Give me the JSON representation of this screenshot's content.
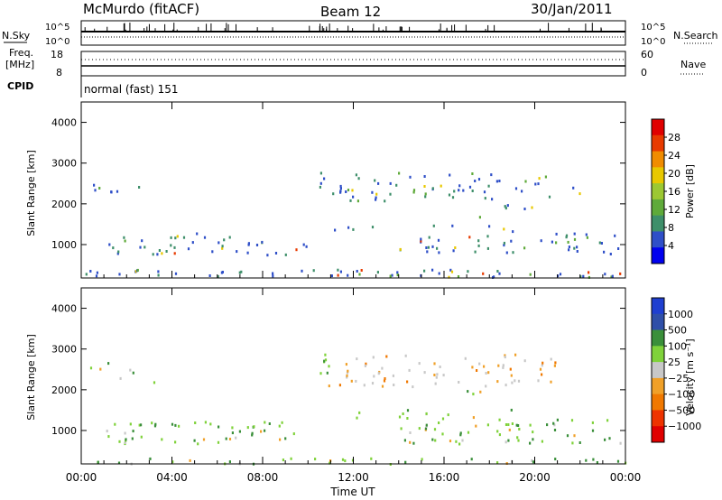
{
  "header": {
    "station": "McMurdo (fitACF)",
    "beam": "Beam 12",
    "date": "30/Jan/2011"
  },
  "top_panel": {
    "nsky_label": "N.Sky",
    "nsearch_label": "N.Search",
    "left_ticks": [
      "10^5",
      "10^0"
    ],
    "right_ticks": [
      "10^5",
      "10^0"
    ]
  },
  "freq_panel": {
    "freq_label": "Freq.",
    "freq_unit": "[MHz]",
    "nave_label": "Nave",
    "freq_ticks": [
      "18",
      "8"
    ],
    "nave_ticks": [
      "60",
      "0"
    ]
  },
  "cpid": {
    "label": "CPID",
    "value": "normal (fast) 151"
  },
  "colors": {
    "power_scale": [
      "#0000ee",
      "#2f4fc8",
      "#3e8f6a",
      "#5faa3a",
      "#9cc832",
      "#e8c800",
      "#f08c00",
      "#e83a00",
      "#e00000"
    ],
    "velocity_scale": [
      "#e00000",
      "#ee3300",
      "#f07800",
      "#f0a028",
      "#c8c8c8",
      "#7fd23a",
      "#3a8f3a",
      "#2f4fa8",
      "#1f3fd0"
    ]
  },
  "chart_data": [
    {
      "type": "heatmap",
      "panel": "power",
      "x_ticks": [
        "00:00",
        "04:00",
        "08:00",
        "12:00",
        "16:00",
        "20:00",
        "00:00"
      ],
      "xlim": [
        0,
        24
      ],
      "y_ticks": [
        "1000",
        "2000",
        "3000",
        "4000"
      ],
      "ylim": [
        180,
        4500
      ],
      "ylabel": "Slant Range [km]",
      "colorbar_label": "Power [dB]",
      "colorbar_ticks": [
        "4",
        "8",
        "12",
        "16",
        "20",
        "24",
        "28"
      ],
      "clim": [
        0,
        30
      ]
    },
    {
      "type": "heatmap",
      "panel": "velocity",
      "x_ticks": [
        "00:00",
        "04:00",
        "08:00",
        "12:00",
        "16:00",
        "20:00",
        "00:00"
      ],
      "xlim": [
        0,
        24
      ],
      "xlabel": "Time UT",
      "y_ticks": [
        "1000",
        "2000",
        "3000",
        "4000"
      ],
      "ylim": [
        180,
        4500
      ],
      "ylabel": "Slant Range [km]",
      "colorbar_label": "Velocity [m s⁻¹]",
      "colorbar_ticks": [
        "1000",
        "500",
        "100",
        "25",
        "−25",
        "−100",
        "−500",
        "−1000"
      ]
    }
  ]
}
